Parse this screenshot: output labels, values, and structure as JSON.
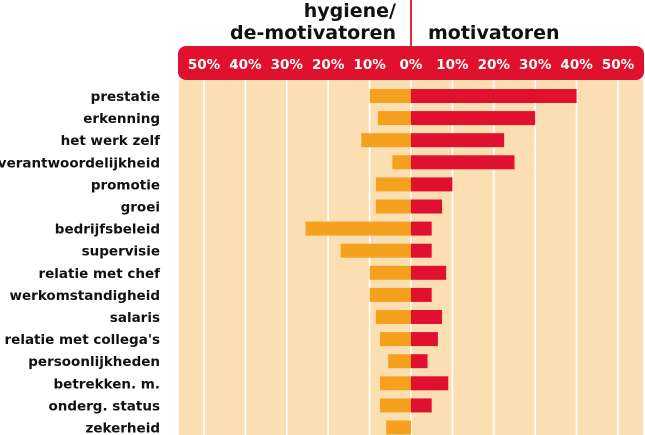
{
  "chart_data": {
    "type": "bar",
    "orientation": "horizontal-diverging",
    "title_left_line1": "hygiene/",
    "title_left_line2": "de-motivatoren",
    "title_right": "motivatoren",
    "left_axis_ticks": [
      "50%",
      "40%",
      "30%",
      "20%",
      "10%"
    ],
    "center_tick": "0%",
    "right_axis_ticks": [
      "10%",
      "20%",
      "30%",
      "40%",
      "50%"
    ],
    "xlim": [
      -50,
      50
    ],
    "grid": true,
    "colors": {
      "hygiene": "#f5a11d",
      "motivator": "#e0102f",
      "axis_band": "#e0102f",
      "plot_background": "#fbdfb3"
    },
    "categories": [
      "prestatie",
      "erkenning",
      "het werk zelf",
      "verantwoordelijkheid",
      "promotie",
      "groei",
      "bedrijfsbeleid",
      "supervisie",
      "relatie met chef",
      "werkomstandigheid",
      "salaris",
      "relatie met collega's",
      "persoonlijkheden",
      "betrekken. m.",
      "onderg. status",
      "zekerheid"
    ],
    "series": [
      {
        "name": "hygiene/de-motivatoren",
        "values": [
          10,
          8,
          12,
          4.5,
          8.5,
          8.5,
          25.5,
          17,
          10,
          10,
          8.5,
          7.5,
          5.5,
          7.5,
          7.5,
          6
        ]
      },
      {
        "name": "motivatoren",
        "values": [
          40,
          30,
          22.5,
          25,
          10,
          7.5,
          5,
          5,
          8.5,
          5,
          7.5,
          6.5,
          4,
          9,
          5,
          0
        ]
      }
    ]
  }
}
